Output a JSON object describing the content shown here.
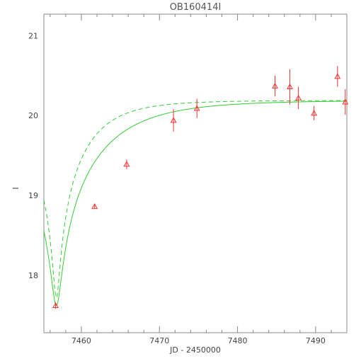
{
  "chart_data": {
    "type": "scatter",
    "title": "OB160414I",
    "xlabel": "JD - 2450000",
    "ylabel": "I",
    "xlim": [
      7455.2,
      7494.0
    ],
    "ylim": [
      21.27,
      17.28
    ],
    "y_inverted": true,
    "x_ticks": [
      "7460",
      "7470",
      "7480",
      "7490"
    ],
    "y_ticks": [
      "18",
      "19",
      "20",
      "21"
    ],
    "points": [
      {
        "x": 7456.7,
        "y": 17.62,
        "err": 0.04
      },
      {
        "x": 7461.7,
        "y": 18.86,
        "err": 0.03
      },
      {
        "x": 7465.8,
        "y": 19.39,
        "err": 0.06
      },
      {
        "x": 7471.8,
        "y": 19.94,
        "err": 0.14
      },
      {
        "x": 7474.8,
        "y": 20.09,
        "err": 0.12
      },
      {
        "x": 7484.8,
        "y": 20.37,
        "err": 0.13
      },
      {
        "x": 7486.7,
        "y": 20.36,
        "err": 0.22
      },
      {
        "x": 7487.8,
        "y": 20.22,
        "err": 0.14
      },
      {
        "x": 7489.8,
        "y": 20.03,
        "err": 0.09
      },
      {
        "x": 7492.8,
        "y": 20.49,
        "err": 0.13
      },
      {
        "x": 7493.8,
        "y": 20.17,
        "err": 0.16
      }
    ],
    "model_curves": [
      {
        "style": "solid",
        "peak_x": 7456.8,
        "peak_y": 17.62,
        "baseline": 20.19,
        "tE": 0.34
      },
      {
        "style": "dashed",
        "peak_x": 7456.8,
        "peak_y": 17.72,
        "baseline": 20.19,
        "tE": 0.22
      }
    ],
    "colors": {
      "points": "#ff3030",
      "model": "#33cc33",
      "axes": "#888888",
      "text": "#444444"
    }
  }
}
